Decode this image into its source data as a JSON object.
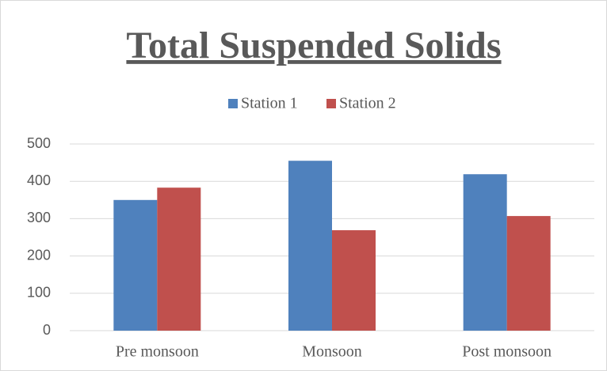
{
  "chart_data": {
    "type": "bar",
    "title": "Total Suspended Solids",
    "categories": [
      "Pre monsoon",
      "Monsoon",
      "Post monsoon"
    ],
    "series": [
      {
        "name": "Station 1",
        "color": "#4f81bd",
        "values": [
          350,
          455,
          419
        ]
      },
      {
        "name": "Station 2",
        "color": "#c0504d",
        "values": [
          383,
          269,
          307
        ]
      }
    ],
    "ylim": [
      0,
      500
    ],
    "yticks": [
      0,
      100,
      200,
      300,
      400,
      500
    ],
    "grid": true,
    "legend": "top"
  }
}
